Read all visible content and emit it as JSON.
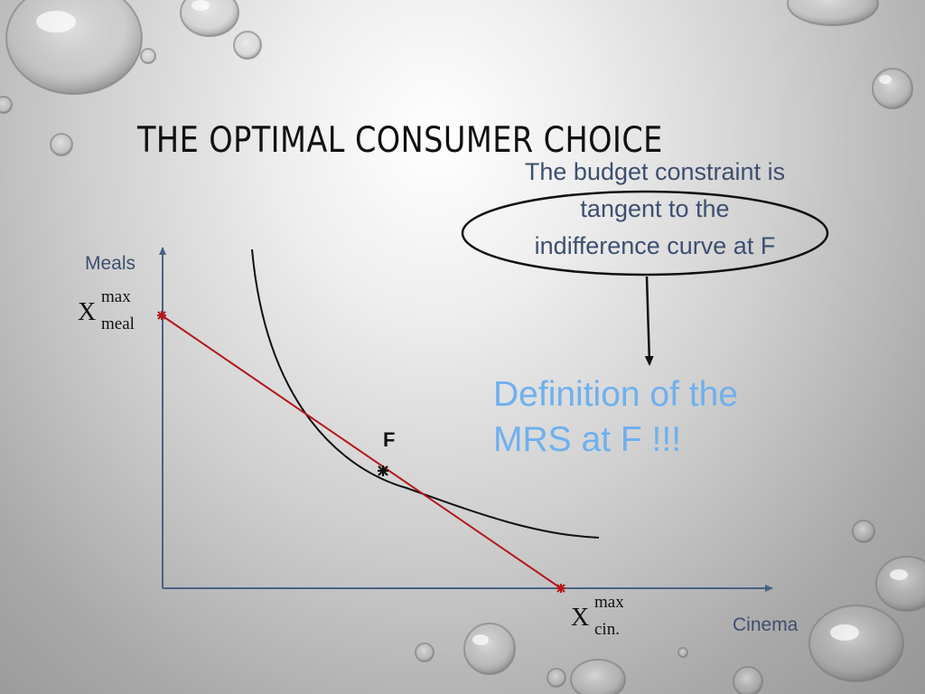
{
  "slide": {
    "title": "THE OPTIMAL CONSUMER CHOICE",
    "note_lines": [
      "The budget constraint is",
      "tangent to the",
      "indifference curve at F"
    ],
    "highlight_lines": [
      "Definition of the",
      "MRS at F !!!"
    ]
  },
  "diagram": {
    "y_axis_label": "Meals",
    "x_axis_label": "Cinema",
    "point_label": "F",
    "meal_intercept": {
      "var": "X",
      "sup": "max",
      "sub": "meal"
    },
    "cinema_intercept": {
      "var": "X",
      "sup": "max",
      "sub": "cin."
    },
    "budget_line_color": "#b3171a",
    "curve_color": "#111111",
    "axis_color": "#4a6185",
    "note_color": "#3d4f70",
    "highlight_color": "#6fb0ee"
  }
}
